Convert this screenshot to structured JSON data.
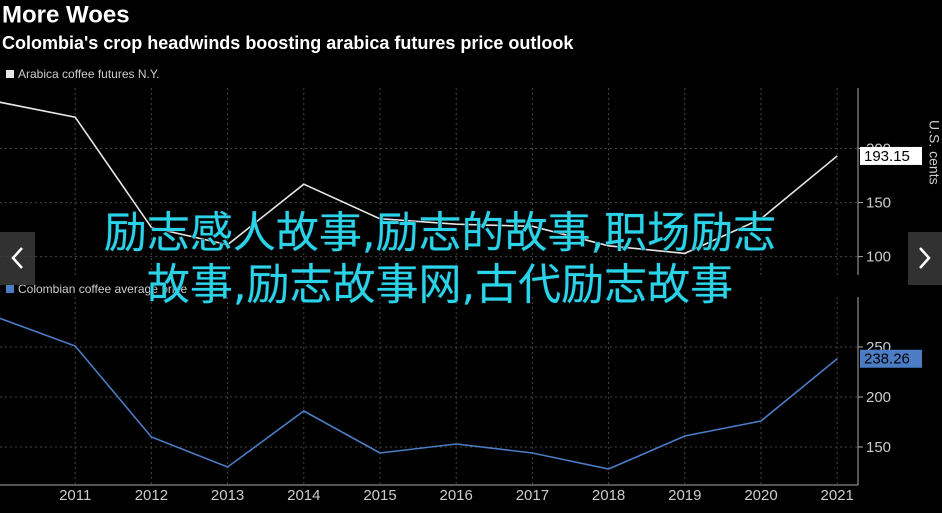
{
  "header": {
    "title": "More Woes",
    "subtitle": "Colombia's crop headwinds boosting arabica futures price outlook"
  },
  "overlay": {
    "line1": "励志感人故事,励志的故事,职场励志",
    "line2": "故事,励志故事网,古代励志故事"
  },
  "chart_data": [
    {
      "type": "line",
      "y_axis_label": "U.S. cents",
      "series": [
        {
          "name": "Arabica coffee futures N.Y.",
          "color": "#e6e6e6",
          "values": [
            243,
            229,
            127,
            111,
            167,
            135,
            130,
            128,
            110,
            103,
            135,
            193.15
          ]
        }
      ],
      "ylim": [
        83,
        256
      ],
      "yticks": [
        100,
        150,
        200
      ]
    },
    {
      "type": "line",
      "categories": [
        null,
        "2011",
        "2012",
        "2013",
        "2014",
        "2015",
        "2016",
        "2017",
        "2018",
        "2019",
        "2020",
        "2021"
      ],
      "series": [
        {
          "name": "Colombian coffee average price",
          "color": "#4b7cc4",
          "values": [
            279,
            251,
            160,
            130,
            186,
            144,
            153,
            144,
            128,
            161,
            176,
            238.26
          ]
        }
      ],
      "ylim": [
        112,
        300
      ],
      "yticks": [
        150,
        200,
        250
      ]
    }
  ]
}
